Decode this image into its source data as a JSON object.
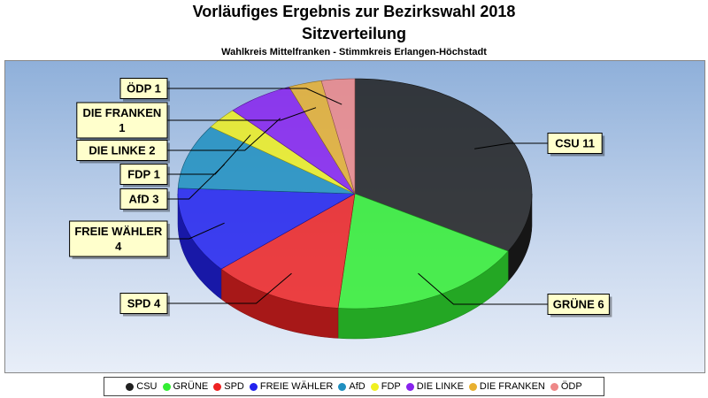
{
  "title": "Vorläufiges Ergebnis zur Bezirkswahl 2018",
  "subtitle_main": "Sitzverteilung",
  "subtitle_small": "Wahlkreis Mittelfranken - Stimmkreis Erlangen-Höchstadt",
  "chart_data": {
    "type": "pie",
    "title": "Vorläufiges Ergebnis zur Bezirkswahl 2018",
    "subtitle": "Sitzverteilung",
    "categories": [
      "CSU",
      "GRÜNE",
      "SPD",
      "FREIE WÄHLER",
      "AfD",
      "FDP",
      "DIE LINKE",
      "DIE FRANKEN",
      "ÖDP"
    ],
    "values": [
      11,
      6,
      4,
      4,
      3,
      1,
      2,
      1,
      1
    ],
    "colors": [
      "#202020",
      "#33ee33",
      "#ee2222",
      "#2222ee",
      "#1f8fc0",
      "#f0f020",
      "#8822ee",
      "#e8b030",
      "#ee8888"
    ],
    "data_labels": [
      "CSU 11",
      "GRÜNE 6",
      "SPD 4",
      "FREIE WÄHLER 4",
      "AfD 3",
      "FDP 1",
      "DIE LINKE 2",
      "DIE FRANKEN 1",
      "ÖDP 1"
    ],
    "legend_position": "bottom"
  },
  "legend": [
    "CSU",
    "GRÜNE",
    "SPD",
    "FREIE WÄHLER",
    "AfD",
    "FDP",
    "DIE LINKE",
    "DIE FRANKEN",
    "ÖDP"
  ]
}
